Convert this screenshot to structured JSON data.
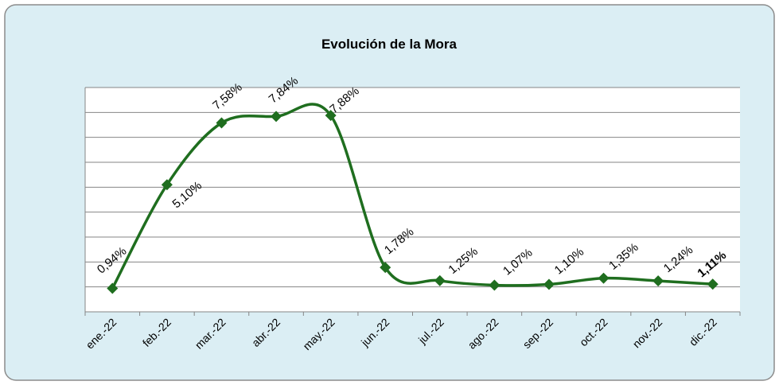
{
  "chart_data": {
    "type": "line",
    "title": "Evolución de la Mora",
    "categories": [
      "ene.-22",
      "feb.-22",
      "mar.-22",
      "abr.-22",
      "may.-22",
      "jun.-22",
      "jul.-22",
      "ago.-22",
      "sep.-22",
      "oct.-22",
      "nov.-22",
      "dic.-22"
    ],
    "series": [
      {
        "name": "Mora",
        "color": "#1f6e1f",
        "values": [
          0.94,
          5.1,
          7.58,
          7.84,
          7.88,
          1.78,
          1.25,
          1.07,
          1.1,
          1.35,
          1.24,
          1.11
        ],
        "value_labels": [
          "0,94%",
          "5,10%",
          "7,58%",
          "7,84%",
          "7,88%",
          "1,78%",
          "1,25%",
          "1,07%",
          "1,10%",
          "1,35%",
          "1,24%",
          "1,11%"
        ]
      }
    ],
    "ylim": [
      0,
      9
    ],
    "yticks": [
      0,
      1,
      2,
      3,
      4,
      5,
      6,
      7,
      8,
      9
    ],
    "show_ytick_labels": false,
    "grid": true,
    "smooth": true,
    "bold_label_index": 11
  }
}
